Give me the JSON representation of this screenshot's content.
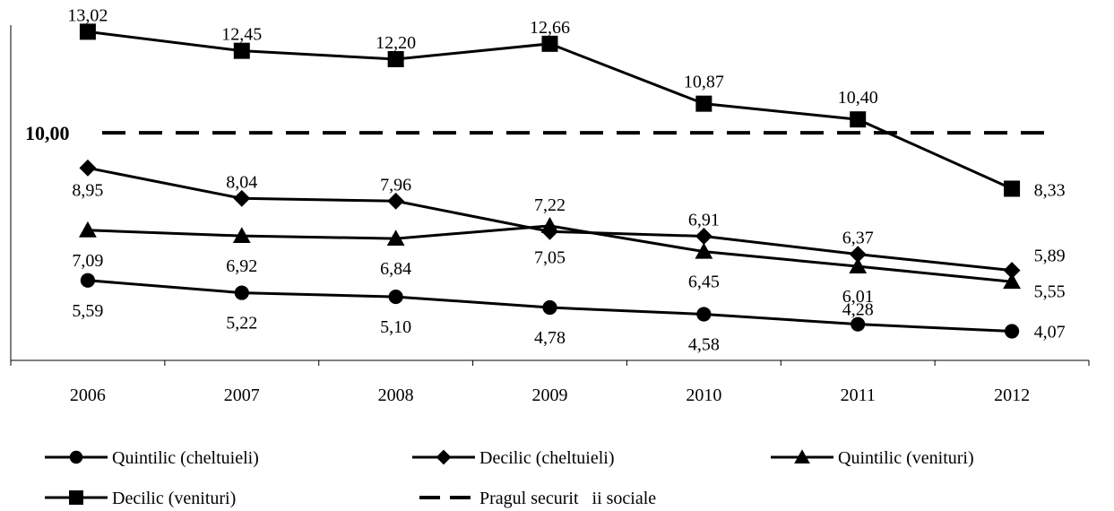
{
  "chart_data": {
    "type": "line",
    "categories": [
      "2006",
      "2007",
      "2008",
      "2009",
      "2010",
      "2011",
      "2012"
    ],
    "ylim": [
      3.2,
      13.7
    ],
    "grid": false,
    "legend_position": "bottom",
    "series": [
      {
        "name": "Quintilic (cheltuieli)",
        "marker": "circle",
        "values": [
          5.59,
          5.22,
          5.1,
          4.78,
          4.58,
          4.28,
          4.07
        ],
        "labels": [
          "5,59",
          "5,22",
          "5,10",
          "4,78",
          "4,58",
          "4,28",
          "4,07"
        ]
      },
      {
        "name": "Decilic (cheltuieli)",
        "marker": "diamond",
        "values": [
          8.95,
          8.04,
          7.96,
          7.05,
          6.91,
          6.37,
          5.89
        ],
        "labels": [
          "8,95",
          "8,04",
          "7,96",
          "7,05",
          "6,91",
          "6,37",
          "5,89"
        ]
      },
      {
        "name": "Quintilic (venituri)",
        "marker": "triangle",
        "values": [
          7.09,
          6.92,
          6.84,
          7.22,
          6.45,
          6.01,
          5.55
        ],
        "labels": [
          "7,09",
          "6,92",
          "6,84",
          "7,22",
          "6,45",
          "6,01",
          "5,55"
        ]
      },
      {
        "name": "Decilic (venituri)",
        "marker": "square",
        "values": [
          13.02,
          12.45,
          12.2,
          12.66,
          10.87,
          10.4,
          8.33
        ],
        "labels": [
          "13,02",
          "12,45",
          "12,20",
          "12,66",
          "10,87",
          "10,40",
          "8,33"
        ]
      }
    ],
    "reference_line": {
      "name": "Pragul securit   ii sociale",
      "value": 10.0,
      "label": "10,00",
      "style": "dashed"
    }
  }
}
